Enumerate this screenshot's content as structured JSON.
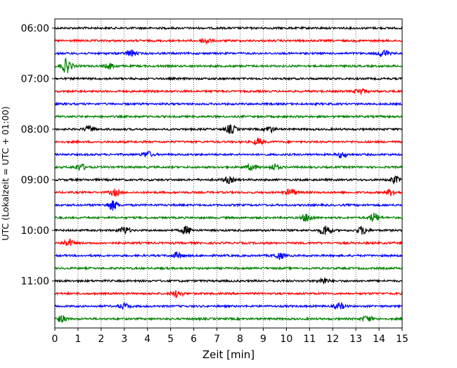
{
  "chart_data": {
    "type": "line",
    "title": "",
    "xlabel": "Zeit  [min]",
    "ylabel": "UTC (Lokalzeit = UTC + 01:00)",
    "xlim": [
      0,
      15
    ],
    "x_ticks": [
      "0",
      "1",
      "2",
      "3",
      "4",
      "5",
      "6",
      "7",
      "8",
      "9",
      "10",
      "11",
      "12",
      "13",
      "14",
      "15"
    ],
    "y_tick_labels": [
      "06:00",
      "07:00",
      "08:00",
      "09:00",
      "10:00",
      "11:00"
    ],
    "grid": "vertical dotted",
    "trace_colors": [
      "#000000",
      "#ff0000",
      "#0000ff",
      "#008000"
    ],
    "traces": [
      {
        "start": "06:00",
        "color": "#000000",
        "events": []
      },
      {
        "start": "06:15",
        "color": "#ff0000",
        "events": [
          [
            6.5,
            1.3
          ]
        ]
      },
      {
        "start": "06:30",
        "color": "#0000ff",
        "events": [
          [
            3.3,
            1.5
          ],
          [
            14.2,
            1.7
          ]
        ]
      },
      {
        "start": "06:45",
        "color": "#008000",
        "events": [
          [
            0.5,
            3.2
          ],
          [
            2.4,
            1.3
          ]
        ]
      },
      {
        "start": "07:00",
        "color": "#000000",
        "events": []
      },
      {
        "start": "07:15",
        "color": "#ff0000",
        "events": [
          [
            13.2,
            1.3
          ]
        ]
      },
      {
        "start": "07:30",
        "color": "#0000ff",
        "events": []
      },
      {
        "start": "07:45",
        "color": "#008000",
        "events": []
      },
      {
        "start": "08:00",
        "color": "#000000",
        "events": [
          [
            1.5,
            1.4
          ],
          [
            7.6,
            2.0
          ],
          [
            9.3,
            1.3
          ]
        ]
      },
      {
        "start": "08:15",
        "color": "#ff0000",
        "events": [
          [
            8.8,
            1.4
          ]
        ]
      },
      {
        "start": "08:30",
        "color": "#0000ff",
        "events": [
          [
            4.0,
            1.3
          ],
          [
            12.4,
            1.2
          ]
        ]
      },
      {
        "start": "08:45",
        "color": "#008000",
        "events": [
          [
            1.1,
            1.5
          ],
          [
            8.5,
            1.3
          ],
          [
            9.5,
            1.3
          ]
        ]
      },
      {
        "start": "09:00",
        "color": "#000000",
        "events": [
          [
            7.5,
            1.4
          ],
          [
            14.7,
            1.5
          ]
        ]
      },
      {
        "start": "09:15",
        "color": "#ff0000",
        "events": [
          [
            2.6,
            1.4
          ],
          [
            10.2,
            1.6
          ],
          [
            14.5,
            1.4
          ]
        ]
      },
      {
        "start": "09:30",
        "color": "#0000ff",
        "events": [
          [
            2.5,
            2.3
          ]
        ]
      },
      {
        "start": "09:45",
        "color": "#008000",
        "events": [
          [
            10.9,
            1.9
          ],
          [
            13.8,
            2.0
          ]
        ]
      },
      {
        "start": "10:00",
        "color": "#000000",
        "events": [
          [
            3.0,
            1.7
          ],
          [
            5.7,
            1.8
          ],
          [
            11.7,
            2.6
          ],
          [
            13.3,
            1.8
          ]
        ]
      },
      {
        "start": "10:15",
        "color": "#ff0000",
        "events": [
          [
            0.6,
            1.6
          ]
        ]
      },
      {
        "start": "10:30",
        "color": "#0000ff",
        "events": [
          [
            5.3,
            1.3
          ],
          [
            9.7,
            1.6
          ]
        ]
      },
      {
        "start": "10:45",
        "color": "#008000",
        "events": []
      },
      {
        "start": "11:00",
        "color": "#000000",
        "events": [
          [
            11.6,
            1.3
          ]
        ]
      },
      {
        "start": "11:15",
        "color": "#ff0000",
        "events": [
          [
            5.3,
            1.5
          ]
        ]
      },
      {
        "start": "11:30",
        "color": "#0000ff",
        "events": [
          [
            3.0,
            1.3
          ],
          [
            12.3,
            1.3
          ]
        ]
      },
      {
        "start": "11:45",
        "color": "#008000",
        "events": [
          [
            0.3,
            1.4
          ],
          [
            13.5,
            1.3
          ]
        ]
      }
    ]
  }
}
